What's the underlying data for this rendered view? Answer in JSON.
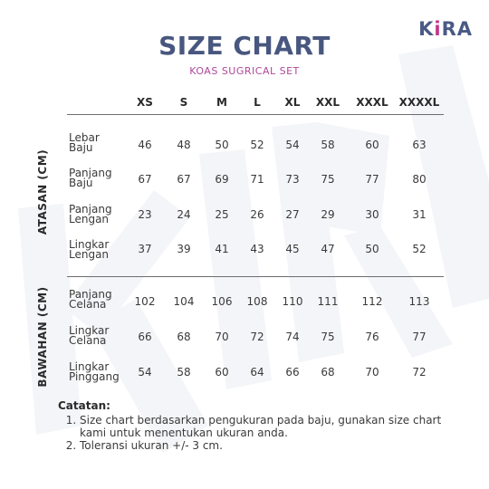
{
  "brand": {
    "logo_left": "K",
    "logo_mark": "i",
    "logo_right": "RA"
  },
  "title": "SIZE CHART",
  "subtitle": "KOAS SUGRICAL SET",
  "sizes": [
    "XS",
    "S",
    "M",
    "L",
    "XL",
    "XXL",
    "XXXL",
    "XXXXL"
  ],
  "sections": [
    {
      "label": "ATASAN (CM)",
      "rows": [
        {
          "label": [
            "Lebar",
            "Baju"
          ],
          "values": [
            "46",
            "48",
            "50",
            "52",
            "54",
            "58",
            "60",
            "63"
          ]
        },
        {
          "label": [
            "Panjang",
            "Baju"
          ],
          "values": [
            "67",
            "67",
            "69",
            "71",
            "73",
            "75",
            "77",
            "80"
          ]
        },
        {
          "label": [
            "Panjang",
            "Lengan"
          ],
          "values": [
            "23",
            "24",
            "25",
            "26",
            "27",
            "29",
            "30",
            "31"
          ]
        },
        {
          "label": [
            "Lingkar",
            "Lengan"
          ],
          "values": [
            "37",
            "39",
            "41",
            "43",
            "45",
            "47",
            "50",
            "52"
          ]
        }
      ]
    },
    {
      "label": "BAWAHAN (CM)",
      "rows": [
        {
          "label": [
            "Panjang",
            "Celana"
          ],
          "values": [
            "102",
            "104",
            "106",
            "108",
            "110",
            "111",
            "112",
            "113"
          ]
        },
        {
          "label": [
            "Lingkar",
            "Celana"
          ],
          "values": [
            "66",
            "68",
            "70",
            "72",
            "74",
            "75",
            "76",
            "77"
          ]
        },
        {
          "label": [
            "Lingkar",
            "Pinggang"
          ],
          "values": [
            "54",
            "58",
            "60",
            "64",
            "66",
            "68",
            "70",
            "72"
          ]
        }
      ]
    }
  ],
  "notes": {
    "title": "Catatan:",
    "items": [
      "Size chart berdasarkan pengukuran pada baju, gunakan size chart kami untuk menentukan ukuran anda.",
      "Toleransi ukuran +/- 3 cm."
    ]
  },
  "colors": {
    "title": "#48577f",
    "accent": "#b0489a",
    "logo": "#4a5a86"
  }
}
